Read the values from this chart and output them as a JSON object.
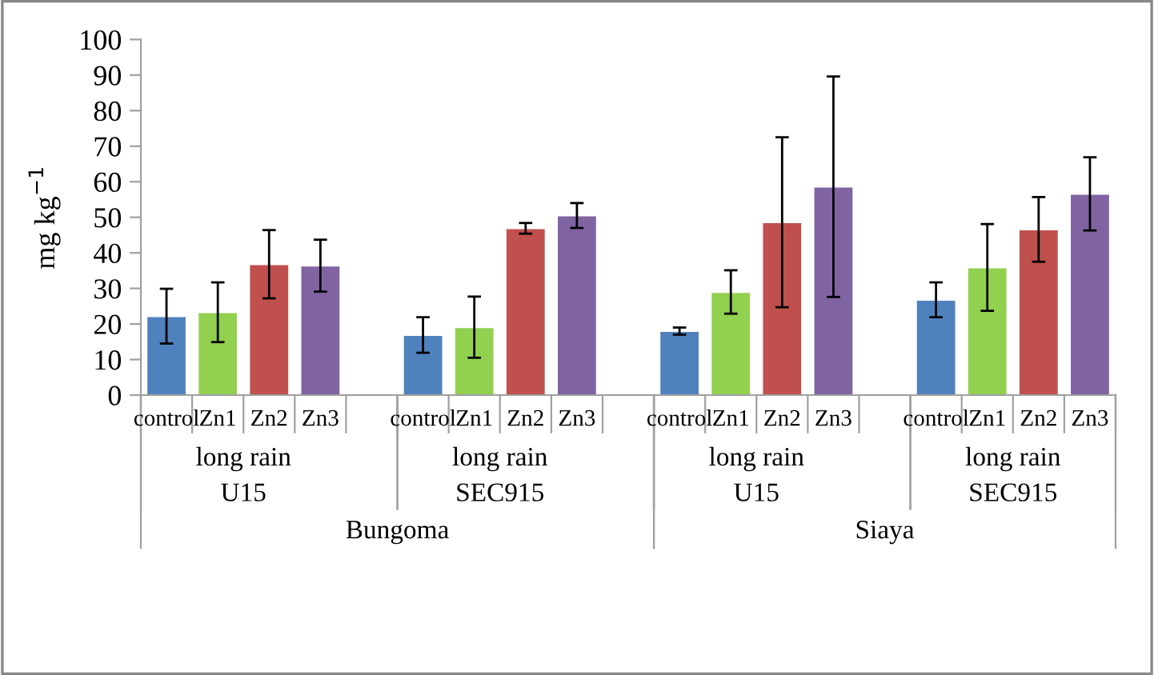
{
  "chart_data": {
    "type": "bar",
    "ylabel": "mg kg$^{−1}$",
    "categories": [
      "control",
      "Zn1",
      "Zn2",
      "Zn3",
      null,
      "control",
      "Zn1",
      "Zn2",
      "Zn3",
      null,
      "control",
      "Zn1",
      "Zn2",
      "Zn3",
      null,
      "control",
      "Zn1",
      "Zn2",
      "Zn3"
    ],
    "values": [
      22.2,
      23.3,
      36.8,
      36.4,
      null,
      16.9,
      19.1,
      46.9,
      50.5,
      null,
      18.0,
      29.0,
      48.6,
      58.6,
      null,
      26.8,
      35.9,
      46.6,
      56.6
    ],
    "errors": [
      7.7,
      8.4,
      9.6,
      7.3,
      null,
      5.0,
      8.6,
      1.5,
      3.5,
      null,
      1.0,
      6.1,
      23.9,
      31.0,
      null,
      4.9,
      12.2,
      9.1,
      10.3
    ],
    "colors": [
      "#4f81bd",
      "#92d050",
      "#c0504d",
      "#8064a2",
      "#ffffff",
      "#4f81bd",
      "#92d050",
      "#c0504d",
      "#8064a2",
      "#ffffff",
      "#4f81bd",
      "#92d050",
      "#c0504d",
      "#8064a2",
      "#ffffff",
      "#4f81bd",
      "#92d050",
      "#c0504d",
      "#8064a2"
    ],
    "annotations": [
      "long rain",
      "long rain",
      "long rain",
      "long rain",
      "U15",
      "SEC915",
      "U15",
      "SEC915",
      "Bungoma",
      "Siaya"
    ],
    "ylim": [
      0,
      100
    ],
    "yticks": [
      0,
      10,
      20,
      30,
      40,
      50,
      60,
      70,
      80,
      90,
      100
    ],
    "grid": false,
    "legend": false
  }
}
